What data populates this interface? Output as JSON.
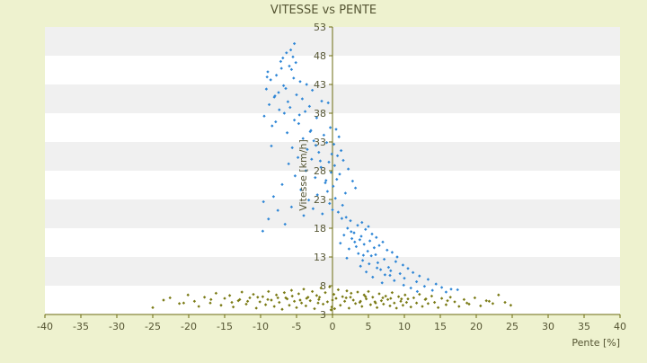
{
  "chart_data": {
    "type": "scatter",
    "title": "VITESSE vs PENTE",
    "xlabel": "Pente [%]",
    "ylabel": "Vitesse [km/h]",
    "xlim": [
      -40,
      40
    ],
    "ylim": [
      3,
      53
    ],
    "xticks": [
      "-40",
      "-35",
      "-30",
      "-25",
      "-20",
      "-15",
      "-10",
      "-5",
      "0",
      "5",
      "10",
      "15",
      "20",
      "25",
      "30",
      "35",
      "40"
    ],
    "yticks": [
      "3",
      "8",
      "13",
      "18",
      "23",
      "28",
      "33",
      "38",
      "43",
      "48",
      "53"
    ],
    "grid": "horizontal alternating bands",
    "legend": "none",
    "colors": {
      "background": "#eef2cf",
      "band_white": "#ffffff",
      "band_grey": "#f0f0f0",
      "axis": "#6b6b10",
      "text": "#555533",
      "series_blue": "#2e86d6",
      "series_olive": "#7a7a14"
    },
    "series": [
      {
        "color": "#2e86d6",
        "marker": "diamond",
        "points": [
          [
            -5.3,
            50.1
          ],
          [
            -5.8,
            49.0
          ],
          [
            -6.4,
            48.5
          ],
          [
            -5.5,
            47.8
          ],
          [
            -6.9,
            47.6
          ],
          [
            -7.2,
            47.0
          ],
          [
            -5.1,
            46.8
          ],
          [
            -6.0,
            46.2
          ],
          [
            -5.7,
            45.6
          ],
          [
            -9.0,
            45.2
          ],
          [
            -7.8,
            44.6
          ],
          [
            -5.4,
            44.1
          ],
          [
            -8.6,
            43.8
          ],
          [
            -4.5,
            43.5
          ],
          [
            -3.6,
            43.0
          ],
          [
            -6.8,
            42.8
          ],
          [
            -9.2,
            42.2
          ],
          [
            -2.8,
            42.0
          ],
          [
            -7.5,
            41.6
          ],
          [
            -5.0,
            41.2
          ],
          [
            -8.1,
            40.8
          ],
          [
            -4.2,
            40.5
          ],
          [
            -6.2,
            40.0
          ],
          [
            -1.5,
            40.1
          ],
          [
            -0.6,
            39.8
          ],
          [
            -8.8,
            39.5
          ],
          [
            -5.9,
            39.0
          ],
          [
            -7.4,
            38.6
          ],
          [
            -3.8,
            38.3
          ],
          [
            -6.7,
            38.0
          ],
          [
            -9.5,
            37.5
          ],
          [
            -2.2,
            37.2
          ],
          [
            -5.3,
            36.8
          ],
          [
            -7.9,
            36.5
          ],
          [
            -4.7,
            36.2
          ],
          [
            -8.4,
            35.8
          ],
          [
            -0.3,
            35.5
          ],
          [
            0.5,
            35.2
          ],
          [
            -3.1,
            34.8
          ],
          [
            -6.3,
            34.6
          ],
          [
            -1.2,
            34.2
          ],
          [
            0.9,
            33.9
          ],
          [
            -4.1,
            33.6
          ],
          [
            -2.6,
            33.2
          ],
          [
            -0.8,
            32.9
          ],
          [
            0.2,
            32.6
          ],
          [
            -8.5,
            32.3
          ],
          [
            -5.6,
            32.0
          ],
          [
            -3.5,
            31.7
          ],
          [
            1.2,
            31.5
          ],
          [
            -1.9,
            31.2
          ],
          [
            -0.1,
            30.9
          ],
          [
            0.7,
            30.6
          ],
          [
            -4.8,
            30.3
          ],
          [
            -2.9,
            30.0
          ],
          [
            1.5,
            29.8
          ],
          [
            -0.5,
            29.5
          ],
          [
            -6.1,
            29.2
          ],
          [
            0.3,
            28.9
          ],
          [
            -1.6,
            28.6
          ],
          [
            2.2,
            28.3
          ],
          [
            -3.7,
            28.0
          ],
          [
            -0.2,
            27.7
          ],
          [
            1.0,
            27.4
          ],
          [
            -5.2,
            27.1
          ],
          [
            -2.4,
            26.8
          ],
          [
            0.6,
            26.5
          ],
          [
            2.8,
            26.2
          ],
          [
            -1.0,
            25.9
          ],
          [
            -7.0,
            25.6
          ],
          [
            0.1,
            25.3
          ],
          [
            3.2,
            25.0
          ],
          [
            -4.4,
            24.7
          ],
          [
            -0.7,
            24.4
          ],
          [
            1.8,
            24.1
          ],
          [
            -2.1,
            23.8
          ],
          [
            -8.2,
            23.5
          ],
          [
            0.4,
            23.2
          ],
          [
            -3.3,
            22.9
          ],
          [
            -9.6,
            22.6
          ],
          [
            -0.4,
            22.3
          ],
          [
            1.4,
            22.0
          ],
          [
            -5.7,
            21.7
          ],
          [
            -2.7,
            21.4
          ],
          [
            -7.6,
            21.1
          ],
          [
            0.8,
            20.8
          ],
          [
            -1.4,
            20.5
          ],
          [
            -4.0,
            20.2
          ],
          [
            1.9,
            19.9
          ],
          [
            -8.9,
            19.6
          ],
          [
            2.5,
            19.3
          ],
          [
            4.1,
            19.0
          ],
          [
            -6.6,
            18.7
          ],
          [
            3.5,
            18.5
          ],
          [
            5.0,
            18.3
          ],
          [
            2.1,
            18.0
          ],
          [
            4.6,
            17.8
          ],
          [
            -9.7,
            17.5
          ],
          [
            3.0,
            17.2
          ],
          [
            5.5,
            17.0
          ],
          [
            1.6,
            16.8
          ],
          [
            4.0,
            16.6
          ],
          [
            6.1,
            16.4
          ],
          [
            2.7,
            16.2
          ],
          [
            3.8,
            16.0
          ],
          [
            5.2,
            15.8
          ],
          [
            7.0,
            15.6
          ],
          [
            1.1,
            15.4
          ],
          [
            4.4,
            15.2
          ],
          [
            6.5,
            15.0
          ],
          [
            3.3,
            14.8
          ],
          [
            5.8,
            14.6
          ],
          [
            2.3,
            14.4
          ],
          [
            7.6,
            14.2
          ],
          [
            4.9,
            14.0
          ],
          [
            8.3,
            13.8
          ],
          [
            3.6,
            13.6
          ],
          [
            6.0,
            13.4
          ],
          [
            5.4,
            13.2
          ],
          [
            9.0,
            13.0
          ],
          [
            2.0,
            12.8
          ],
          [
            7.2,
            12.6
          ],
          [
            4.2,
            12.4
          ],
          [
            8.8,
            12.2
          ],
          [
            6.3,
            12.0
          ],
          [
            5.1,
            11.8
          ],
          [
            9.8,
            11.6
          ],
          [
            3.9,
            11.4
          ],
          [
            7.8,
            11.2
          ],
          [
            10.5,
            11.0
          ],
          [
            6.7,
            10.8
          ],
          [
            8.1,
            10.6
          ],
          [
            4.7,
            10.4
          ],
          [
            11.2,
            10.3
          ],
          [
            9.4,
            10.1
          ],
          [
            7.3,
            9.9
          ],
          [
            12.1,
            9.7
          ],
          [
            5.6,
            9.5
          ],
          [
            10.0,
            9.3
          ],
          [
            13.3,
            9.1
          ],
          [
            8.6,
            8.9
          ],
          [
            11.7,
            8.7
          ],
          [
            6.9,
            8.5
          ],
          [
            14.4,
            8.3
          ],
          [
            9.9,
            8.1
          ],
          [
            12.8,
            7.9
          ],
          [
            15.2,
            7.7
          ],
          [
            10.9,
            7.6
          ],
          [
            16.5,
            7.4
          ],
          [
            13.9,
            7.2
          ],
          [
            17.4,
            7.3
          ],
          [
            11.8,
            7.0
          ],
          [
            15.8,
            6.9
          ],
          [
            8.0,
            9.8
          ],
          [
            6.2,
            11.1
          ],
          [
            4.3,
            13.3
          ],
          [
            3.1,
            15.6
          ],
          [
            2.6,
            17.4
          ],
          [
            1.3,
            19.7
          ],
          [
            0.0,
            21.2
          ],
          [
            -0.9,
            26.3
          ],
          [
            -1.7,
            29.7
          ],
          [
            -2.3,
            32.4
          ],
          [
            -3.0,
            35.0
          ],
          [
            -4.6,
            37.7
          ],
          [
            -6.5,
            42.3
          ],
          [
            -7.1,
            45.8
          ],
          [
            -9.1,
            44.3
          ],
          [
            -8.0,
            41.0
          ],
          [
            -3.2,
            39.2
          ]
        ]
      },
      {
        "color": "#7a7a14",
        "marker": "diamond",
        "points": [
          [
            -25.0,
            4.2
          ],
          [
            -22.6,
            5.9
          ],
          [
            -21.3,
            4.9
          ],
          [
            -20.1,
            6.4
          ],
          [
            -19.2,
            5.3
          ],
          [
            -18.6,
            4.4
          ],
          [
            -17.8,
            6.0
          ],
          [
            -17.0,
            5.0
          ],
          [
            -16.2,
            6.7
          ],
          [
            -15.5,
            4.6
          ],
          [
            -15.0,
            5.8
          ],
          [
            -14.3,
            6.3
          ],
          [
            -13.8,
            4.3
          ],
          [
            -13.1,
            5.4
          ],
          [
            -12.6,
            6.9
          ],
          [
            -12.0,
            4.8
          ],
          [
            -11.5,
            5.9
          ],
          [
            -11.0,
            6.5
          ],
          [
            -10.6,
            4.1
          ],
          [
            -10.1,
            5.2
          ],
          [
            -9.7,
            6.1
          ],
          [
            -9.3,
            4.7
          ],
          [
            -8.9,
            7.0
          ],
          [
            -8.5,
            5.5
          ],
          [
            -8.1,
            4.4
          ],
          [
            -7.8,
            6.4
          ],
          [
            -7.4,
            5.1
          ],
          [
            -7.0,
            3.9
          ],
          [
            -6.7,
            6.8
          ],
          [
            -6.3,
            5.7
          ],
          [
            -6.0,
            4.6
          ],
          [
            -5.7,
            7.2
          ],
          [
            -5.3,
            5.3
          ],
          [
            -5.0,
            4.2
          ],
          [
            -4.7,
            6.6
          ],
          [
            -4.3,
            5.0
          ],
          [
            -4.0,
            7.4
          ],
          [
            -3.7,
            4.5
          ],
          [
            -3.4,
            6.0
          ],
          [
            -3.1,
            5.4
          ],
          [
            -2.8,
            7.0
          ],
          [
            -2.5,
            4.0
          ],
          [
            -2.2,
            6.3
          ],
          [
            -1.9,
            5.6
          ],
          [
            -1.6,
            7.6
          ],
          [
            -1.3,
            4.8
          ],
          [
            -1.0,
            6.8
          ],
          [
            -0.7,
            5.2
          ],
          [
            -0.4,
            7.8
          ],
          [
            -0.1,
            4.3
          ],
          [
            0.2,
            6.5
          ],
          [
            0.5,
            5.8
          ],
          [
            0.8,
            7.3
          ],
          [
            1.1,
            4.6
          ],
          [
            1.4,
            6.1
          ],
          [
            1.7,
            5.3
          ],
          [
            2.0,
            7.1
          ],
          [
            2.3,
            4.1
          ],
          [
            2.6,
            6.7
          ],
          [
            2.9,
            5.5
          ],
          [
            3.2,
            4.9
          ],
          [
            3.5,
            6.9
          ],
          [
            3.8,
            5.1
          ],
          [
            4.1,
            4.4
          ],
          [
            4.4,
            6.4
          ],
          [
            4.7,
            5.7
          ],
          [
            5.0,
            7.0
          ],
          [
            5.3,
            4.7
          ],
          [
            5.6,
            6.0
          ],
          [
            5.9,
            5.2
          ],
          [
            6.2,
            4.2
          ],
          [
            6.5,
            6.6
          ],
          [
            6.8,
            5.4
          ],
          [
            7.1,
            4.8
          ],
          [
            7.4,
            6.2
          ],
          [
            7.7,
            5.6
          ],
          [
            8.0,
            4.5
          ],
          [
            8.3,
            6.8
          ],
          [
            8.6,
            5.0
          ],
          [
            8.9,
            4.1
          ],
          [
            9.2,
            6.1
          ],
          [
            9.5,
            5.3
          ],
          [
            9.8,
            4.6
          ],
          [
            10.1,
            6.4
          ],
          [
            10.5,
            5.7
          ],
          [
            10.9,
            4.3
          ],
          [
            11.3,
            5.9
          ],
          [
            11.7,
            5.0
          ],
          [
            12.1,
            6.5
          ],
          [
            12.5,
            4.4
          ],
          [
            12.9,
            5.6
          ],
          [
            13.3,
            4.9
          ],
          [
            13.8,
            6.2
          ],
          [
            14.2,
            5.1
          ],
          [
            14.7,
            4.2
          ],
          [
            15.2,
            5.8
          ],
          [
            15.8,
            4.7
          ],
          [
            16.4,
            6.0
          ],
          [
            17.0,
            5.2
          ],
          [
            17.6,
            4.4
          ],
          [
            18.3,
            5.6
          ],
          [
            19.0,
            4.8
          ],
          [
            19.8,
            5.9
          ],
          [
            20.6,
            4.5
          ],
          [
            21.4,
            5.4
          ],
          [
            22.3,
            4.9
          ],
          [
            23.1,
            6.4
          ],
          [
            24.0,
            5.1
          ],
          [
            24.8,
            4.6
          ],
          [
            -23.5,
            5.5
          ],
          [
            -20.7,
            5.0
          ],
          [
            -16.9,
            5.6
          ],
          [
            -14.0,
            5.1
          ],
          [
            -11.8,
            5.3
          ],
          [
            -9.0,
            5.6
          ],
          [
            -6.5,
            5.9
          ],
          [
            -4.5,
            5.5
          ],
          [
            -2.0,
            5.0
          ],
          [
            0.0,
            5.5
          ],
          [
            1.9,
            5.9
          ],
          [
            3.9,
            5.3
          ],
          [
            6.0,
            5.0
          ],
          [
            8.1,
            5.8
          ],
          [
            10.3,
            5.1
          ],
          [
            13.0,
            5.7
          ],
          [
            16.0,
            5.4
          ],
          [
            18.7,
            5.0
          ],
          [
            21.8,
            5.3
          ],
          [
            -0.2,
            3.8
          ],
          [
            0.3,
            4.0
          ],
          [
            -1.8,
            6.0
          ],
          [
            -3.6,
            5.8
          ],
          [
            -5.6,
            6.2
          ],
          [
            -7.6,
            5.9
          ],
          [
            -10.4,
            6.0
          ],
          [
            -12.9,
            5.6
          ],
          [
            2.5,
            6.0
          ],
          [
            4.6,
            6.1
          ],
          [
            7.0,
            5.9
          ],
          [
            9.6,
            5.7
          ]
        ]
      }
    ]
  }
}
